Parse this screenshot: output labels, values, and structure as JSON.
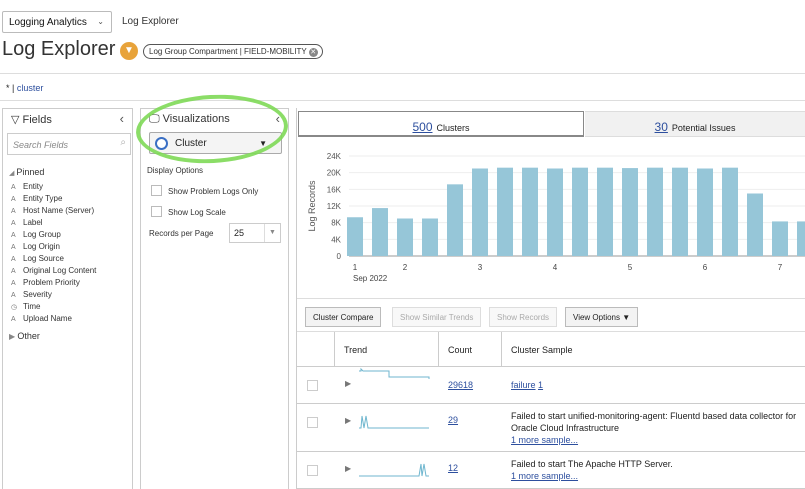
{
  "header": {
    "app_selector": "Logging Analytics",
    "breadcrumb": "Log Explorer",
    "title": "Log Explorer",
    "filter_chip": "Log Group Compartment | FIELD-MOBILITY",
    "accent_color": "#e8a33a"
  },
  "query": {
    "prefix": "* | ",
    "keyword": "cluster"
  },
  "fields_panel": {
    "title": "Fields",
    "search_placeholder": "Search Fields",
    "pinned_label": "Pinned",
    "other_label": "Other",
    "items": [
      {
        "type": "A",
        "label": "Entity"
      },
      {
        "type": "A",
        "label": "Entity Type"
      },
      {
        "type": "A",
        "label": "Host Name (Server)"
      },
      {
        "type": "A",
        "label": "Label"
      },
      {
        "type": "A",
        "label": "Log Group"
      },
      {
        "type": "A",
        "label": "Log Origin"
      },
      {
        "type": "A",
        "label": "Log Source"
      },
      {
        "type": "A",
        "label": "Original Log Content"
      },
      {
        "type": "A",
        "label": "Problem Priority"
      },
      {
        "type": "A",
        "label": "Severity"
      },
      {
        "type": "◷",
        "label": "Time"
      },
      {
        "type": "A",
        "label": "Upload Name"
      }
    ]
  },
  "viz_panel": {
    "title": "Visualizations",
    "selected": "Cluster",
    "display_options": "Display Options",
    "show_problem_logs": "Show Problem Logs Only",
    "show_log_scale": "Show Log Scale",
    "records_per_page_label": "Records per Page",
    "records_per_page": "25"
  },
  "tabs": [
    {
      "count": "500",
      "label": "Clusters",
      "active": true
    },
    {
      "count": "30",
      "label": "Potential Issues",
      "active": false
    }
  ],
  "chart_data": {
    "type": "bar",
    "ylabel": "Log Records",
    "ylim": [
      0,
      24000
    ],
    "yticks": [
      "0",
      "4K",
      "8K",
      "12K",
      "16K",
      "20K",
      "24K"
    ],
    "x_tick_labels": [
      {
        "bar": 0,
        "label": "1",
        "sub": "Sep 2022"
      },
      {
        "bar": 2,
        "label": "2"
      },
      {
        "bar": 5,
        "label": "3"
      },
      {
        "bar": 8,
        "label": "4"
      },
      {
        "bar": 11,
        "label": "5"
      },
      {
        "bar": 14,
        "label": "6"
      },
      {
        "bar": 17,
        "label": "7"
      }
    ],
    "values": [
      9300,
      11500,
      9000,
      9000,
      17200,
      21000,
      21200,
      21200,
      21000,
      21200,
      21200,
      21100,
      21200,
      21200,
      21000,
      21200,
      15000,
      8300,
      8300
    ],
    "bar_color": "#96c6d8",
    "grid": true
  },
  "toolbar": {
    "cluster_compare": "Cluster Compare",
    "show_similar": "Show Similar Trends",
    "show_records": "Show Records",
    "view_options": "View Options"
  },
  "table": {
    "headers": {
      "trend": "Trend",
      "count": "Count",
      "sample": "Cluster Sample"
    },
    "rows": [
      {
        "count": "29618",
        "sample": "failure",
        "sample_link_suffix": "1",
        "more": ""
      },
      {
        "count": "29",
        "sample": "Failed to start unified-monitoring-agent: Fluentd based data collector for Oracle Cloud Infrastructure",
        "more": "1 more sample..."
      },
      {
        "count": "12",
        "sample": "Failed to start The Apache HTTP Server.",
        "more": "1 more sample..."
      }
    ]
  }
}
